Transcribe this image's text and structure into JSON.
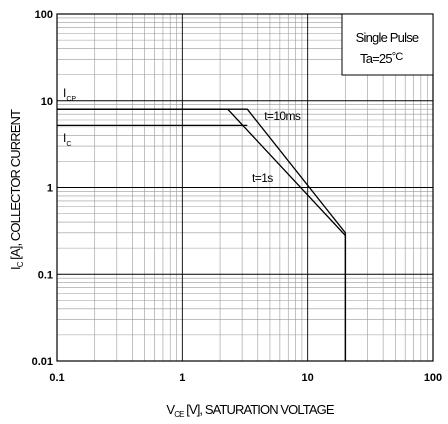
{
  "chart_data": {
    "type": "line",
    "x_scale": "log",
    "y_scale": "log",
    "xlim": [
      0.1,
      100
    ],
    "ylim": [
      0.01,
      100
    ],
    "grid": true,
    "xlabel": {
      "main": "V",
      "sub": "CE",
      "rest": " [V], SATURATION VOLTAGE"
    },
    "ylabel": {
      "main": "I",
      "sub": "C",
      "rest": " [A], COLLECTOR CURRENT"
    },
    "x_ticks": [
      {
        "value": 0.1,
        "label": "0.1"
      },
      {
        "value": 1,
        "label": "1"
      },
      {
        "value": 10,
        "label": "10"
      },
      {
        "value": 100,
        "label": "100"
      }
    ],
    "y_ticks": [
      {
        "value": 0.01,
        "label": "0.01"
      },
      {
        "value": 0.1,
        "label": "0.1"
      },
      {
        "value": 1,
        "label": "1"
      },
      {
        "value": 10,
        "label": "10"
      },
      {
        "value": 100,
        "label": "100"
      }
    ],
    "legend_box": {
      "line1": "Single Pulse",
      "line2_prefix": "Ta=25",
      "line2_unit": "°C",
      "position": "top-right"
    },
    "levels": [
      {
        "name": "ICP",
        "label_main": "I",
        "label_sub": "CP",
        "value": 8
      },
      {
        "name": "IC",
        "label_main": "I",
        "label_sub": "C",
        "value": 5.2
      }
    ],
    "series": [
      {
        "name": "t=10ms",
        "label": "t=10ms",
        "x": [
          0.1,
          3.3,
          20,
          20
        ],
        "y": [
          8,
          8,
          0.3,
          0.01
        ]
      },
      {
        "name": "t=1s",
        "label": "t=1s",
        "x": [
          0.1,
          2.3,
          20,
          20
        ],
        "y": [
          8,
          8,
          0.28,
          0.01
        ]
      },
      {
        "name": "IC-limit",
        "label": "",
        "x": [
          0.1,
          3.3
        ],
        "y": [
          5.2,
          5.2
        ]
      }
    ],
    "annotations": [
      {
        "name": "label-t-10ms",
        "text": "t=10ms",
        "x": 4.5,
        "y": 6.0
      },
      {
        "name": "label-t-1s",
        "text": "t=1s",
        "x": 3.6,
        "y": 1.15
      }
    ]
  }
}
